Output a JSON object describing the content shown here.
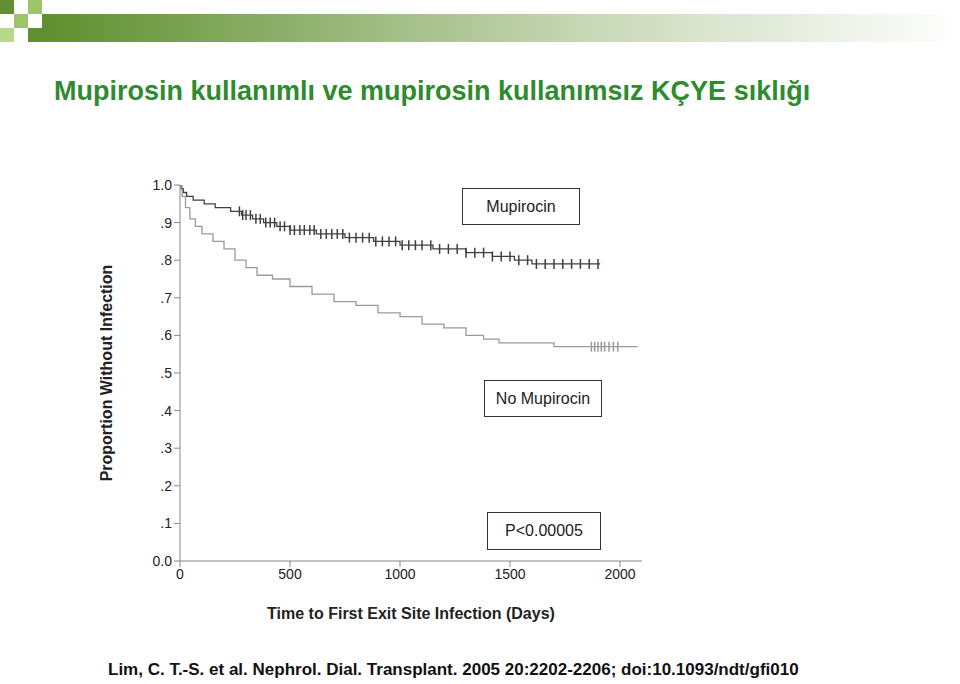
{
  "chart_data": {
    "type": "line",
    "line_style": "step",
    "title": "Mupirosin kullanımlı ve mupirosin kullanımsız KÇYE sıklığı",
    "xlabel": "Time to First Exit Site Infection (Days)",
    "ylabel": "Proportion Without Infection",
    "annotation": "P<0.00005",
    "source": "Lim, C. T.-S. et al. Nephrol. Dial. Transplant. 2005 20:2202-2206; doi:10.1093/ndt/gfi010",
    "xlim": [
      0,
      2100
    ],
    "ylim": [
      0,
      1
    ],
    "xticks": [
      0,
      500,
      1000,
      1500,
      2000
    ],
    "yticks": [
      {
        "value": 0,
        "label": "0.0"
      },
      {
        "value": 0.1,
        "label": ".1"
      },
      {
        "value": 0.2,
        "label": ".2"
      },
      {
        "value": 0.3,
        "label": ".3"
      },
      {
        "value": 0.4,
        "label": ".4"
      },
      {
        "value": 0.5,
        "label": ".5"
      },
      {
        "value": 0.6,
        "label": ".6"
      },
      {
        "value": 0.7,
        "label": ".7"
      },
      {
        "value": 0.8,
        "label": ".8"
      },
      {
        "value": 0.9,
        "label": ".9"
      },
      {
        "value": 1,
        "label": "1.0"
      }
    ],
    "grid": false,
    "series": [
      {
        "name": "Mupirocin",
        "color": "#404040",
        "marker": "censor",
        "x": [
          0,
          5,
          15,
          30,
          60,
          110,
          160,
          230,
          280,
          330,
          380,
          440,
          500,
          620,
          750,
          880,
          1000,
          1150,
          1300,
          1420,
          1520,
          1600,
          1910
        ],
        "values": [
          1.0,
          0.99,
          0.98,
          0.97,
          0.96,
          0.95,
          0.94,
          0.93,
          0.92,
          0.91,
          0.9,
          0.89,
          0.88,
          0.87,
          0.86,
          0.85,
          0.84,
          0.83,
          0.82,
          0.81,
          0.8,
          0.79,
          0.79
        ],
        "censored": [
          270,
          285,
          300,
          320,
          345,
          365,
          390,
          410,
          430,
          455,
          475,
          500,
          520,
          545,
          565,
          590,
          610,
          640,
          665,
          690,
          715,
          740,
          770,
          800,
          830,
          860,
          890,
          920,
          950,
          980,
          1010,
          1040,
          1070,
          1100,
          1140,
          1180,
          1220,
          1260,
          1300,
          1340,
          1380,
          1420,
          1460,
          1500,
          1540,
          1580,
          1620,
          1660,
          1700,
          1740,
          1780,
          1820,
          1860,
          1900
        ]
      },
      {
        "name": "No Mupirocin",
        "color": "#9a9a9a",
        "marker": "censor",
        "x": [
          0,
          10,
          25,
          45,
          70,
          100,
          150,
          200,
          250,
          300,
          350,
          420,
          500,
          600,
          700,
          800,
          900,
          1000,
          1100,
          1200,
          1300,
          1380,
          1450,
          1700,
          2080
        ],
        "values": [
          1.0,
          0.97,
          0.94,
          0.91,
          0.89,
          0.87,
          0.85,
          0.83,
          0.8,
          0.78,
          0.76,
          0.75,
          0.73,
          0.71,
          0.69,
          0.68,
          0.66,
          0.65,
          0.63,
          0.62,
          0.6,
          0.59,
          0.58,
          0.57,
          0.57
        ],
        "censored": [
          1870,
          1885,
          1900,
          1915,
          1930,
          1950,
          1970,
          1990
        ]
      }
    ]
  }
}
